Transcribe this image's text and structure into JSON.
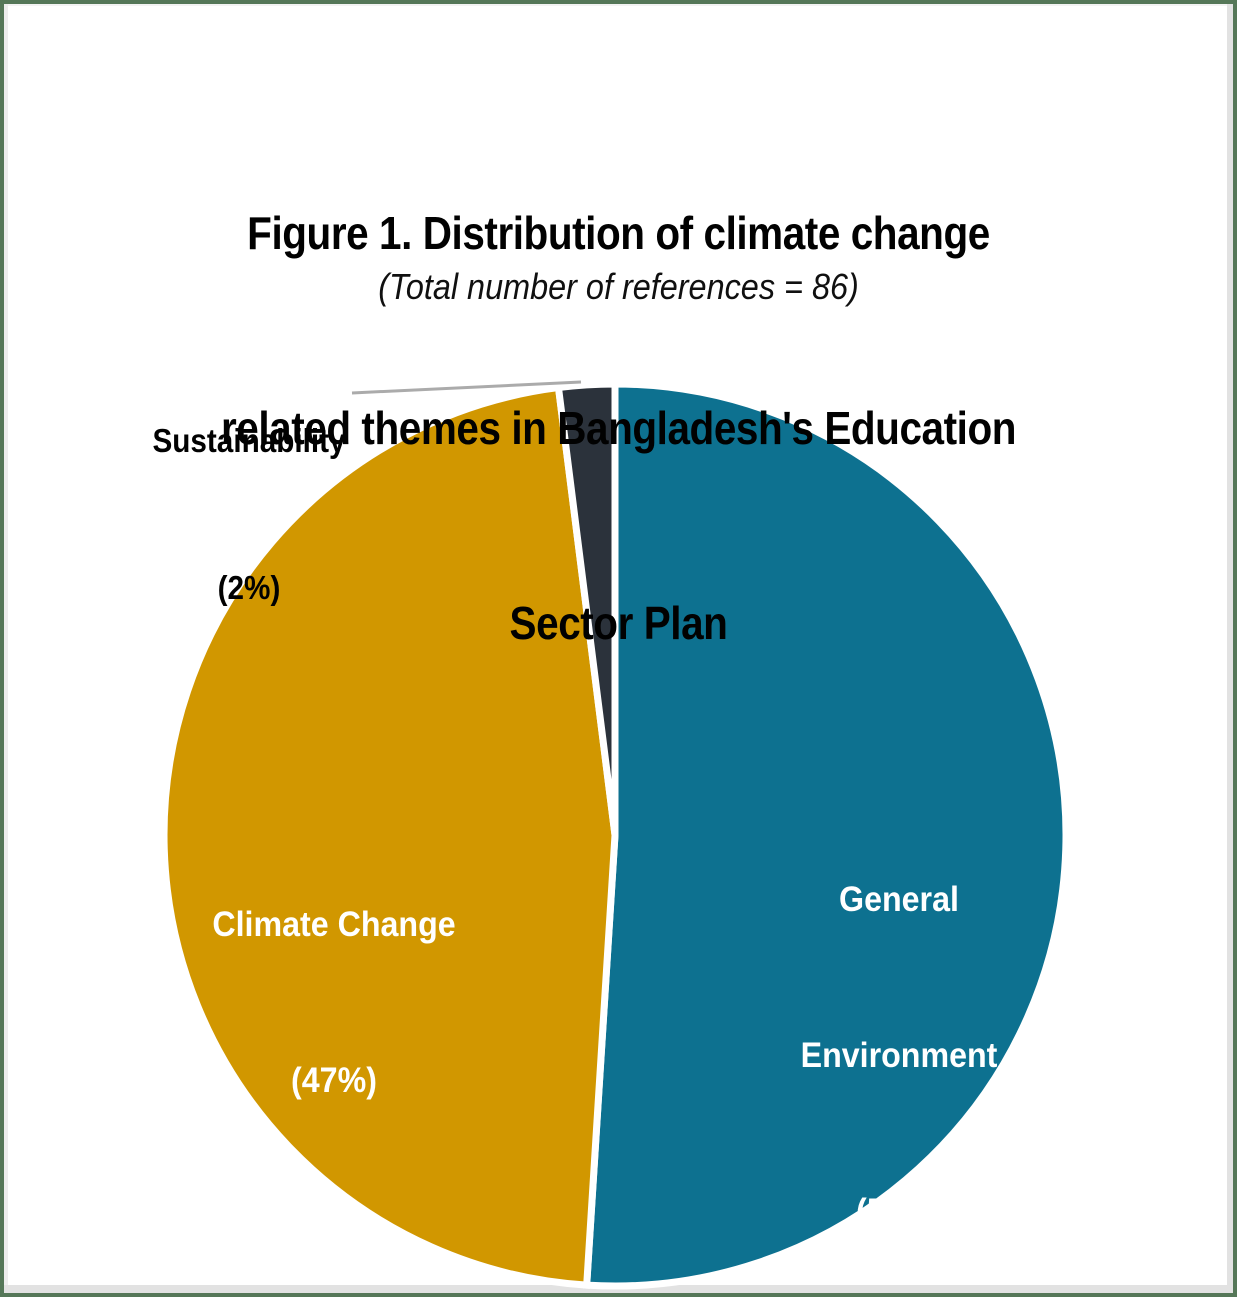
{
  "frame": {
    "border_color": "#557758",
    "inner_edge_color": "#e2e2e2",
    "background": "#ffffff"
  },
  "title": {
    "lines": [
      "Figure 1. Distribution of climate change",
      "related themes in Bangladesh's Education",
      "Sector Plan"
    ],
    "subtitle": "(Total number of references = 86)"
  },
  "chart_data": {
    "type": "pie",
    "title": "Figure 1. Distribution of climate change related themes in Bangladesh's Education Sector Plan",
    "subtitle": "(Total number of references = 86)",
    "total_references": 86,
    "unit": "percent",
    "start_angle_deg": 0,
    "direction": "clockwise",
    "gap_color": "#ffffff",
    "leader_line_color": "#ababab",
    "slices": [
      {
        "label": "General Environment",
        "percent": 51,
        "color": "#0d7190",
        "label_placement": "inside",
        "label_color": "#ffffff"
      },
      {
        "label": "Climate Change",
        "percent": 47,
        "color": "#d19700",
        "label_placement": "inside",
        "label_color": "#ffffff"
      },
      {
        "label": "Sustainability",
        "percent": 2,
        "color": "#2b323b",
        "label_placement": "outside-callout",
        "label_color": "#010101"
      }
    ]
  },
  "pie_labels": {
    "general": {
      "lines": [
        "General",
        "Environment",
        "(51%)"
      ]
    },
    "climate": {
      "lines": [
        "Climate Change",
        "(47%)"
      ]
    },
    "sustainability": {
      "lines": [
        "Sustainability",
        "(2%)"
      ]
    }
  }
}
